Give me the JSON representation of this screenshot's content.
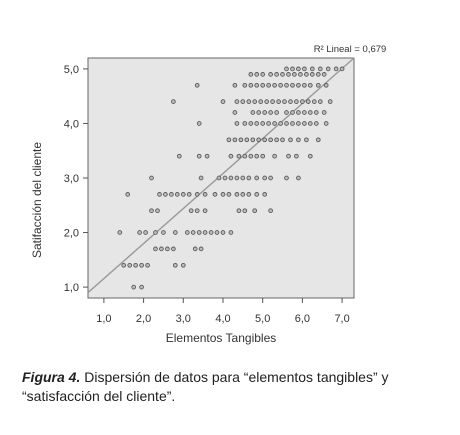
{
  "chart_data": {
    "type": "scatter",
    "xlabel": "Elementos Tangibles",
    "ylabel": "Satifacción del cliente",
    "xlim": [
      0.6,
      7.3
    ],
    "ylim": [
      0.8,
      5.2
    ],
    "xticks": [
      "1,0",
      "2,0",
      "3,0",
      "4,0",
      "5,0",
      "6,0",
      "7,0"
    ],
    "yticks": [
      "1,0",
      "2,0",
      "3,0",
      "4,0",
      "5,0"
    ],
    "xtick_values": [
      1,
      2,
      3,
      4,
      5,
      6,
      7
    ],
    "ytick_values": [
      1,
      2,
      3,
      4,
      5
    ],
    "annotation": "R² Lineal = 0,679",
    "background": "#e6e6e6",
    "fit_line": {
      "x1": 0.6,
      "y1": 0.9,
      "x2": 7.3,
      "y2": 5.2,
      "color": "#999999"
    },
    "grid": false,
    "rows": [
      {
        "y": 1.0,
        "x": [
          1.75,
          1.95
        ]
      },
      {
        "y": 1.4,
        "x": [
          1.5,
          1.65,
          1.8,
          1.95,
          2.1,
          2.8,
          3.0
        ]
      },
      {
        "y": 1.7,
        "x": [
          2.3,
          2.45,
          2.6,
          2.75,
          3.3,
          3.45
        ]
      },
      {
        "y": 2.0,
        "x": [
          1.4,
          1.9,
          2.05,
          2.3,
          2.5,
          2.8,
          3.1,
          3.25,
          3.4,
          3.55,
          3.7,
          3.85,
          4.0,
          4.2
        ]
      },
      {
        "y": 2.4,
        "x": [
          2.2,
          2.35,
          3.2,
          3.35,
          3.55,
          4.4,
          4.55,
          4.8,
          5.2
        ]
      },
      {
        "y": 2.7,
        "x": [
          1.6,
          2.4,
          2.55,
          2.7,
          2.85,
          3.0,
          3.15,
          3.35,
          3.55,
          3.8,
          4.0,
          4.15,
          4.35,
          4.5,
          4.65,
          4.85,
          5.05
        ]
      },
      {
        "y": 3.0,
        "x": [
          2.2,
          3.45,
          3.9,
          4.05,
          4.2,
          4.35,
          4.5,
          4.65,
          4.85,
          5.05,
          5.2,
          5.6,
          5.9
        ]
      },
      {
        "y": 3.4,
        "x": [
          2.9,
          3.4,
          3.6,
          4.2,
          4.4,
          4.55,
          4.7,
          4.85,
          5.0,
          5.3,
          5.65,
          5.85,
          6.2
        ]
      },
      {
        "y": 3.7,
        "x": [
          4.15,
          4.3,
          4.45,
          4.6,
          4.75,
          4.9,
          5.05,
          5.2,
          5.35,
          5.5,
          5.7,
          5.9,
          6.1,
          6.4
        ]
      },
      {
        "y": 4.0,
        "x": [
          3.4,
          4.35,
          4.55,
          4.7,
          4.85,
          5.0,
          5.15,
          5.3,
          5.45,
          5.6,
          5.75,
          5.9,
          6.05,
          6.2,
          6.35,
          6.6
        ]
      },
      {
        "y": 4.2,
        "x": [
          4.3,
          4.75,
          4.9,
          5.05,
          5.2,
          5.35,
          5.6,
          5.75,
          5.9,
          6.05,
          6.2,
          6.35,
          6.55
        ]
      },
      {
        "y": 4.4,
        "x": [
          2.75,
          4.0,
          4.35,
          4.5,
          4.65,
          4.8,
          4.95,
          5.1,
          5.25,
          5.4,
          5.55,
          5.7,
          5.85,
          6.0,
          6.15,
          6.3,
          6.45,
          6.7
        ]
      },
      {
        "y": 4.7,
        "x": [
          3.35,
          4.3,
          4.55,
          4.7,
          4.85,
          5.0,
          5.15,
          5.3,
          5.45,
          5.6,
          5.75,
          5.9,
          6.05,
          6.2,
          6.4,
          6.6
        ]
      },
      {
        "y": 4.9,
        "x": [
          4.7,
          4.85,
          5.0,
          5.2,
          5.35,
          5.5,
          5.65,
          5.8,
          5.95,
          6.1,
          6.25,
          6.4,
          6.55
        ]
      },
      {
        "y": 5.0,
        "x": [
          5.6,
          5.75,
          5.9,
          6.05,
          6.25,
          6.45,
          6.65,
          6.85,
          7.0
        ]
      }
    ]
  },
  "caption": {
    "label": "Figura 4.",
    "text": " Dispersión de datos para “elementos tangibles” y “satisfacción del cliente”."
  }
}
